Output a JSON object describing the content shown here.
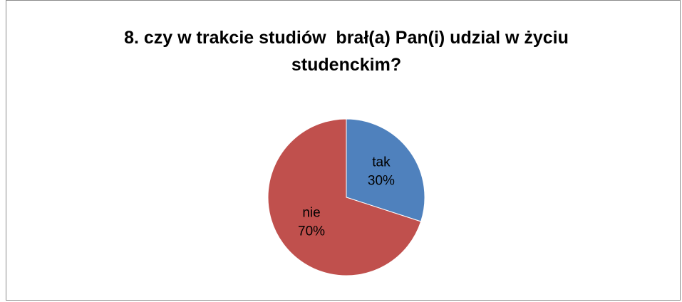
{
  "chart_data": {
    "type": "pie",
    "title": "8. czy w trakcie studiów  brał(a) Pan(i) udzial w życiu studenckim?",
    "categories": [
      "tak",
      "nie"
    ],
    "values": [
      30,
      70
    ],
    "value_labels": [
      "30%",
      "70%"
    ],
    "colors": [
      "#4f81bd",
      "#c0504d"
    ]
  }
}
